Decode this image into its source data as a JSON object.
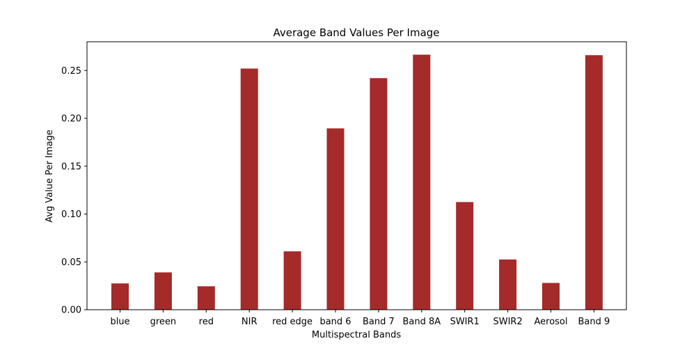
{
  "chart_data": {
    "type": "bar",
    "title": "Average Band Values Per Image",
    "xlabel": "Multispectral Bands",
    "ylabel": "Avg Value Per Image",
    "categories": [
      "blue",
      "green",
      "red",
      "NIR",
      "red edge",
      "band 6",
      "Band 7",
      "Band 8A",
      "SWIR1",
      "SWIR2",
      "Aerosol",
      "Band 9"
    ],
    "values": [
      0.0275,
      0.039,
      0.0245,
      0.252,
      0.061,
      0.1895,
      0.242,
      0.2665,
      0.1125,
      0.0525,
      0.028,
      0.266
    ],
    "ylim": [
      0,
      0.28
    ],
    "yticks": [
      0.0,
      0.05,
      0.1,
      0.15,
      0.2,
      0.25
    ],
    "ytick_labels": [
      "0.00",
      "0.05",
      "0.10",
      "0.15",
      "0.20",
      "0.25"
    ],
    "bar_color": "#a52a2a",
    "grid": false
  }
}
